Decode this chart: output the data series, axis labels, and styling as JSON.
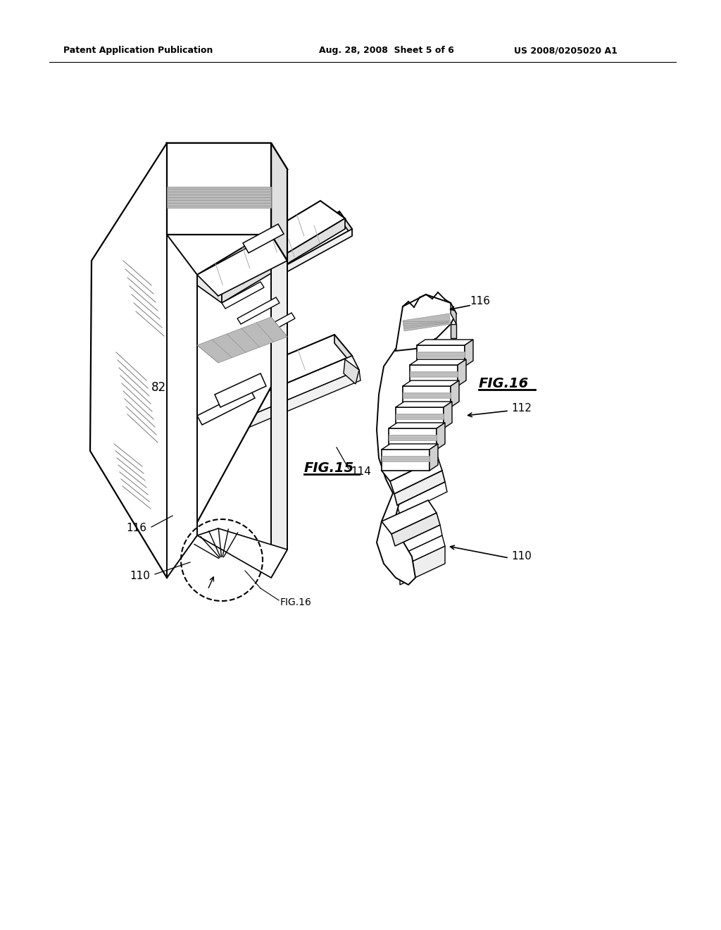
{
  "bg_color": "#ffffff",
  "lc": "#000000",
  "gray1": "#aaaaaa",
  "gray2": "#cccccc",
  "gray3": "#888888",
  "header_left": "Patent Application Publication",
  "header_mid": "Aug. 28, 2008  Sheet 5 of 6",
  "header_right": "US 2008/0205020 A1",
  "fig15_label": "FIG.15",
  "fig16_label": "FIG.16",
  "fig16_ref": "FIG.16",
  "lbl_82": "82",
  "lbl_110_l": "110",
  "lbl_114": "114",
  "lbl_116_l": "116",
  "lbl_110_r": "110",
  "lbl_112": "112",
  "lbl_116_r": "116"
}
